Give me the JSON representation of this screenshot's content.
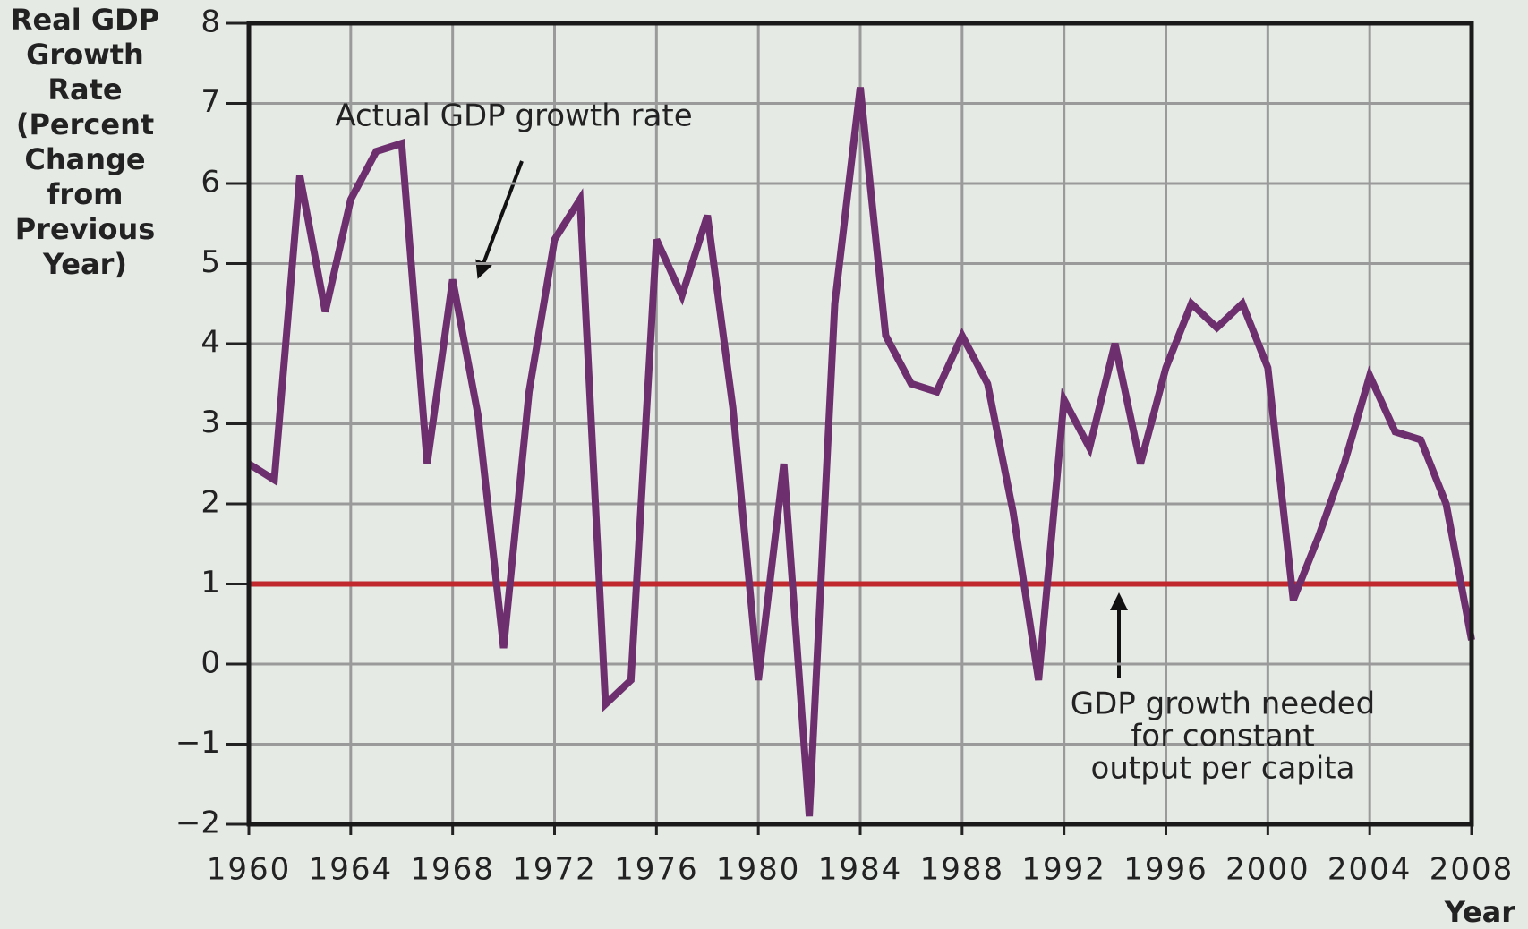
{
  "chart_data": {
    "type": "line",
    "y_label": [
      "Real GDP",
      "Growth",
      "Rate",
      "(Percent",
      "Change",
      "from",
      "Previous",
      "Year)"
    ],
    "x_label": "Year",
    "x": [
      1960,
      1961,
      1962,
      1963,
      1964,
      1965,
      1966,
      1967,
      1968,
      1969,
      1970,
      1971,
      1972,
      1973,
      1974,
      1975,
      1976,
      1977,
      1978,
      1979,
      1980,
      1981,
      1982,
      1983,
      1984,
      1985,
      1986,
      1987,
      1988,
      1989,
      1990,
      1991,
      1992,
      1993,
      1994,
      1995,
      1996,
      1997,
      1998,
      1999,
      2000,
      2001,
      2002,
      2003,
      2004,
      2005,
      2006,
      2007,
      2008
    ],
    "series": [
      {
        "name": "Actual GDP growth rate",
        "color": "#6e2f6e",
        "values": [
          2.5,
          2.3,
          6.1,
          4.4,
          5.8,
          6.4,
          6.5,
          2.5,
          4.8,
          3.1,
          0.2,
          3.4,
          5.3,
          5.8,
          -0.5,
          -0.2,
          5.3,
          4.6,
          5.6,
          3.2,
          -0.2,
          2.5,
          -1.9,
          4.5,
          7.2,
          4.1,
          3.5,
          3.4,
          4.1,
          3.5,
          1.9,
          -0.2,
          3.3,
          2.7,
          4.0,
          2.5,
          3.7,
          4.5,
          4.2,
          4.5,
          3.7,
          0.8,
          1.6,
          2.5,
          3.6,
          2.9,
          2.8,
          2.0,
          0.3
        ]
      }
    ],
    "reference_line": {
      "value": 1,
      "color": "#c0282d",
      "label": [
        "GDP growth needed",
        "for constant",
        "output per capita"
      ]
    },
    "xlim": [
      1960,
      2008
    ],
    "xticks": [
      1960,
      1964,
      1968,
      1972,
      1976,
      1980,
      1984,
      1988,
      1992,
      1996,
      2000,
      2004,
      2008
    ],
    "ylim": [
      -2,
      8
    ],
    "yticks": [
      {
        "value": -2,
        "label": "−2"
      },
      {
        "value": -1,
        "label": "−1"
      },
      0,
      1,
      2,
      3,
      4,
      5,
      6,
      7,
      8
    ],
    "grid": true
  }
}
